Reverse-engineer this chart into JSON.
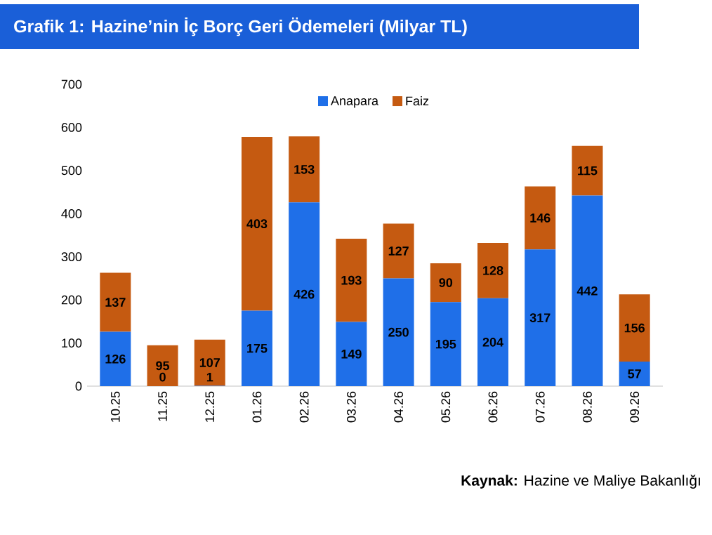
{
  "chart_data": {
    "type": "bar",
    "title": "Grafik 1: Hazine’nin İç Borç Geri Ödemeleri (Milyar TL)",
    "categories": [
      "10.25",
      "11.25",
      "12.25",
      "01.26",
      "02.26",
      "03.26",
      "04.26",
      "05.26",
      "06.26",
      "07.26",
      "08.26",
      "09.26"
    ],
    "series": [
      {
        "name": "Anapara",
        "color": "#1f6fe8",
        "values": [
          126,
          0,
          1,
          175,
          426,
          149,
          250,
          195,
          204,
          317,
          442,
          57
        ]
      },
      {
        "name": "Faiz",
        "color": "#c55a11",
        "values": [
          137,
          95,
          107,
          403,
          153,
          193,
          127,
          90,
          128,
          146,
          115,
          156
        ]
      }
    ],
    "stacked": true,
    "data_labels": true,
    "legend": "top",
    "ylim": [
      0,
      700
    ],
    "yticks": [
      0,
      100,
      200,
      300,
      400,
      500,
      600,
      700
    ],
    "annotations": [
      "**Kaynak:** Hazine ve Maliye Bakanlığı"
    ]
  }
}
